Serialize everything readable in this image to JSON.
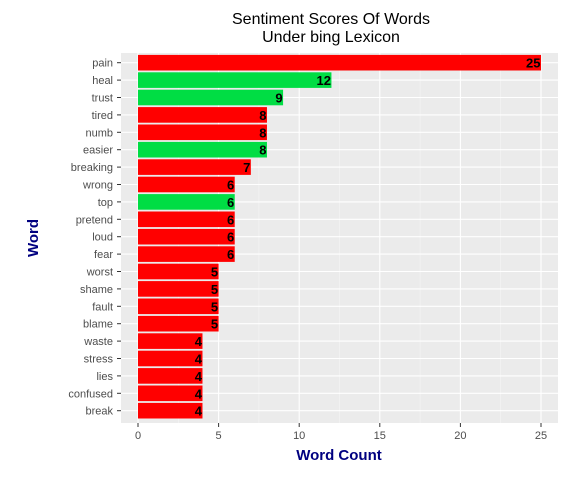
{
  "chart_data": {
    "type": "bar",
    "orientation": "horizontal",
    "title": "Sentiment Scores Of Words\nUnder bing Lexicon",
    "xlabel": "Word Count",
    "ylabel": "Word",
    "xlim": [
      0,
      26.2
    ],
    "xticks": [
      0,
      5,
      10,
      15,
      20,
      25
    ],
    "grid": true,
    "legend": "none",
    "colors": {
      "negative": "#ff0000",
      "positive": "#00dd44",
      "panel": "#ebebeb",
      "grid": "#ffffff",
      "axis_title": "#000080"
    },
    "categories": [
      "pain",
      "heal",
      "trust",
      "tired",
      "numb",
      "easier",
      "breaking",
      "wrong",
      "top",
      "pretend",
      "loud",
      "fear",
      "worst",
      "shame",
      "fault",
      "blame",
      "waste",
      "stress",
      "lies",
      "confused",
      "break"
    ],
    "values": [
      25,
      12,
      9,
      8,
      8,
      8,
      7,
      6,
      6,
      6,
      6,
      6,
      5,
      5,
      5,
      5,
      4,
      4,
      4,
      4,
      4
    ],
    "sentiment": [
      "negative",
      "positive",
      "positive",
      "negative",
      "negative",
      "positive",
      "negative",
      "negative",
      "positive",
      "negative",
      "negative",
      "negative",
      "negative",
      "negative",
      "negative",
      "negative",
      "negative",
      "negative",
      "negative",
      "negative",
      "negative"
    ]
  }
}
